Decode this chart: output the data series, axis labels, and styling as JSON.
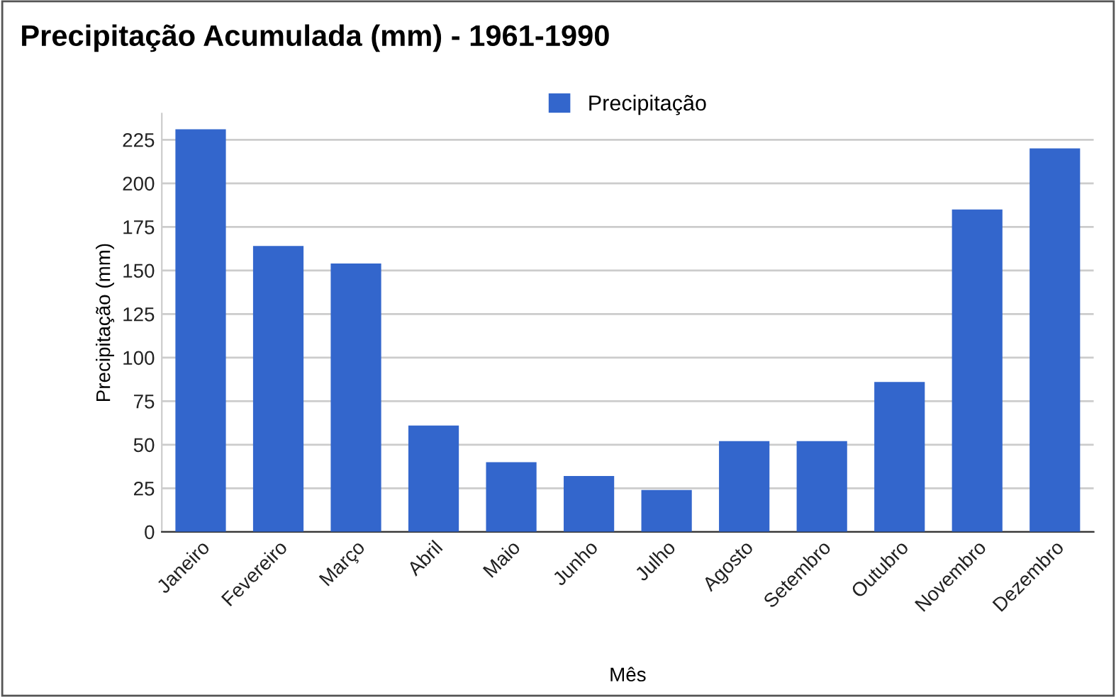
{
  "chart_data": {
    "type": "bar",
    "title": "Precipitação Acumulada (mm) - 1961-1990",
    "xlabel": "Mês",
    "ylabel": "Precipitação (mm)",
    "categories": [
      "Janeiro",
      "Fevereiro",
      "Março",
      "Abril",
      "Maio",
      "Junho",
      "Julho",
      "Agosto",
      "Setembro",
      "Outubro",
      "Novembro",
      "Dezembro"
    ],
    "series": [
      {
        "name": "Precipitação",
        "color": "#3366cc",
        "values": [
          231,
          164,
          154,
          61,
          40,
          32,
          24,
          52,
          52,
          86,
          185,
          220
        ]
      }
    ],
    "ylim": [
      0,
      240
    ],
    "yticks": [
      0,
      25,
      50,
      75,
      100,
      125,
      150,
      175,
      200,
      225
    ],
    "grid": "y",
    "legend": "top"
  }
}
